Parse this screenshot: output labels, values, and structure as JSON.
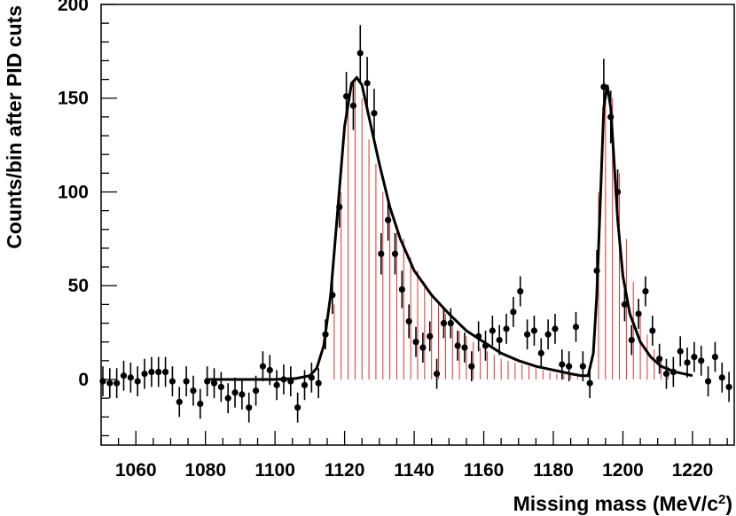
{
  "chart_data": {
    "type": "scatter",
    "title": "",
    "xlabel": "Missing mass (MeV/c",
    "xlabel_sup": "2",
    "xlabel_close": ")",
    "ylabel": "Counts/bin after PID cuts",
    "xlim": [
      1050,
      1232
    ],
    "ylim": [
      -35,
      200
    ],
    "x_ticks": [
      1060,
      1080,
      1100,
      1120,
      1140,
      1160,
      1180,
      1200,
      1220
    ],
    "y_ticks": [
      0,
      50,
      100,
      150,
      200
    ],
    "grid": false,
    "legend": "none",
    "colors": {
      "points": "#000000",
      "fit": "#000000",
      "components": "#e03030"
    },
    "series": [
      {
        "type": "points_with_error_bars",
        "x": [
          1050.5,
          1052.5,
          1054.5,
          1056.5,
          1058.5,
          1060.5,
          1062.5,
          1064.5,
          1066.5,
          1068.5,
          1070.5,
          1072.5,
          1074.5,
          1076.5,
          1078.5,
          1080.5,
          1082.5,
          1084.5,
          1086.5,
          1088.5,
          1090.5,
          1092.5,
          1094.5,
          1096.5,
          1098.5,
          1100.5,
          1102.5,
          1104.5,
          1106.5,
          1108.5,
          1110.5,
          1112.5,
          1114.5,
          1116.5,
          1118.5,
          1120.5,
          1122.5,
          1124.5,
          1126.5,
          1128.5,
          1130.5,
          1132.5,
          1134.5,
          1136.5,
          1138.5,
          1140.5,
          1142.5,
          1144.5,
          1146.5,
          1148.5,
          1150.5,
          1152.5,
          1154.5,
          1156.5,
          1158.5,
          1160.5,
          1162.5,
          1164.5,
          1166.5,
          1168.5,
          1170.5,
          1172.5,
          1174.5,
          1176.5,
          1178.5,
          1180.5,
          1182.5,
          1184.5,
          1186.5,
          1188.5,
          1190.5,
          1192.5,
          1194.5,
          1196.5,
          1198.5,
          1200.5,
          1202.5,
          1204.5,
          1206.5,
          1208.5,
          1210.5,
          1212.5,
          1214.5,
          1216.5,
          1218.5,
          1220.5,
          1222.5,
          1224.5,
          1226.5,
          1228.5,
          1230.5
        ],
        "y": [
          -1,
          -2,
          -2,
          2,
          1,
          -1,
          3,
          4,
          4,
          4,
          -1,
          -12,
          -1,
          -6,
          -13,
          -1,
          -2,
          -4,
          -10,
          -7,
          -8,
          -15,
          -6,
          7,
          5,
          -3,
          0,
          -1,
          -15,
          -3,
          1,
          -2,
          24,
          45,
          92,
          151,
          146,
          174,
          158,
          142,
          67,
          85,
          67,
          48,
          31,
          20,
          17,
          23,
          3,
          30,
          30,
          18,
          17,
          7,
          23,
          18,
          26,
          21,
          27,
          36,
          47,
          24,
          26,
          14,
          24,
          27,
          8,
          7,
          28,
          7,
          -2,
          58,
          156,
          140,
          100,
          40,
          21,
          35,
          47,
          26,
          11,
          3,
          4,
          15,
          9,
          12,
          10,
          -1,
          12,
          1,
          -4
        ],
        "err": [
          8,
          8,
          8,
          8,
          8,
          8,
          8,
          8,
          8,
          8,
          8,
          8,
          8,
          8,
          8,
          8,
          8,
          8,
          8,
          8,
          8,
          8,
          8,
          8,
          8,
          8,
          8,
          8,
          8,
          8,
          8,
          8,
          8,
          10,
          11,
          13,
          13,
          15,
          14,
          13,
          11,
          11,
          11,
          10,
          9,
          8,
          8,
          8,
          8,
          8,
          8,
          8,
          8,
          8,
          8,
          8,
          8,
          8,
          8,
          8,
          8,
          8,
          8,
          8,
          8,
          8,
          8,
          8,
          8,
          8,
          8,
          11,
          15,
          14,
          12,
          9,
          8,
          8,
          8,
          8,
          8,
          8,
          8,
          8,
          8,
          8,
          8,
          8,
          8,
          8,
          8
        ]
      },
      {
        "type": "fit_curve",
        "x": [
          1080,
          1090,
          1100,
          1106,
          1110,
          1112,
          1114,
          1116,
          1118,
          1120,
          1122,
          1123.5,
          1125,
          1127,
          1130,
          1133,
          1136,
          1140,
          1145,
          1150,
          1155,
          1160,
          1165,
          1170,
          1175,
          1180,
          1185,
          1188,
          1190,
          1191.5,
          1192.5,
          1193.5,
          1194.5,
          1195.5,
          1196.5,
          1197.5,
          1198.5,
          1200,
          1202,
          1205,
          1208,
          1211,
          1215,
          1220
        ],
        "y": [
          0,
          0,
          0,
          0.5,
          2,
          6,
          18,
          45,
          90,
          135,
          158,
          161,
          157,
          140,
          115,
          92,
          75,
          58,
          45,
          35,
          26,
          20,
          14,
          10,
          7,
          5,
          3,
          2,
          2,
          14,
          45,
          95,
          145,
          157,
          145,
          115,
          85,
          55,
          35,
          20,
          12,
          7,
          4,
          2
        ]
      },
      {
        "type": "component_lines",
        "x": [
          1117,
          1119,
          1121,
          1123,
          1125,
          1127,
          1129,
          1131,
          1133,
          1135,
          1137,
          1139,
          1141,
          1143,
          1145,
          1147,
          1149,
          1151,
          1153,
          1155,
          1157,
          1159,
          1161,
          1163,
          1165,
          1167,
          1169,
          1171,
          1173,
          1175,
          1177,
          1179,
          1181,
          1183,
          1185,
          1187,
          1193,
          1195,
          1197,
          1199,
          1201,
          1203,
          1205,
          1207,
          1209,
          1211,
          1213
        ],
        "y": [
          40,
          100,
          145,
          160,
          150,
          128,
          115,
          100,
          90,
          82,
          75,
          65,
          58,
          51,
          46,
          40,
          35,
          30,
          26,
          23,
          20,
          17,
          15,
          13,
          11,
          10,
          9,
          8,
          7,
          6,
          5,
          4,
          3,
          3,
          3,
          2,
          100,
          158,
          150,
          110,
          75,
          52,
          36,
          24,
          16,
          11,
          7
        ]
      }
    ]
  }
}
